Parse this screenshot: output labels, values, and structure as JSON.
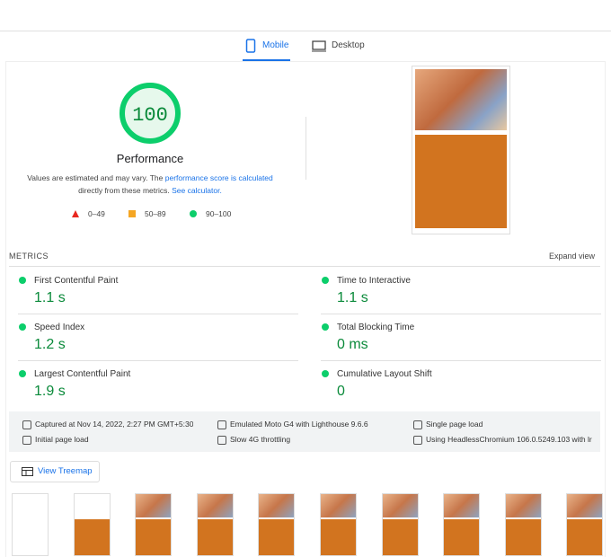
{
  "tabs": [
    "Mobile",
    "Desktop"
  ],
  "score": {
    "value": 100,
    "label": "Performance"
  },
  "note": {
    "text1": "Values are estimated and may vary. The ",
    "link1": "performance score is calculated",
    "text2": "directly from these metrics. ",
    "link2": "See calculator."
  },
  "legend": [
    "0–49",
    "50–89",
    "90–100"
  ],
  "metrics_title": "METRICS",
  "expand": "Expand view",
  "metrics": [
    {
      "name": "First Contentful Paint",
      "value": "1.1 s"
    },
    {
      "name": "Time to Interactive",
      "value": "1.1 s"
    },
    {
      "name": "Speed Index",
      "value": "1.2 s"
    },
    {
      "name": "Total Blocking Time",
      "value": "0 ms"
    },
    {
      "name": "Largest Contentful Paint",
      "value": "1.9 s"
    },
    {
      "name": "Cumulative Layout Shift",
      "value": "0"
    }
  ],
  "info": [
    "Captured at Nov 14, 2022, 2:27 PM GMT+5:30",
    "Emulated Moto G4 with Lighthouse 9.6.6",
    "Single page load",
    "Initial page load",
    "Slow 4G throttling",
    "Using HeadlessChromium 106.0.5249.103 with lr"
  ],
  "treemap": "View Treemap"
}
